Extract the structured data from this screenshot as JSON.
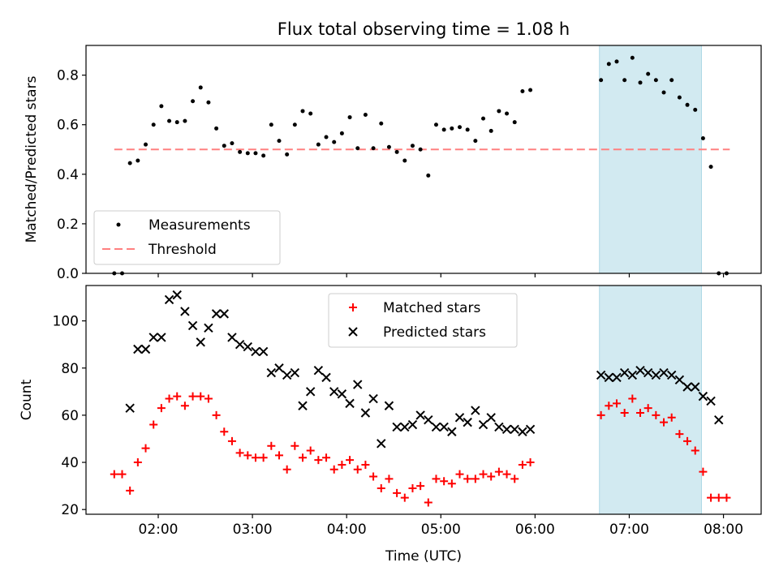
{
  "title": "Flux total observing time = 1.08 h",
  "chart_data": [
    {
      "type": "scatter",
      "ylabel": "Matched/Predicted stars",
      "xlabel": "",
      "ylim": [
        0,
        0.92
      ],
      "y_ticks": [
        0.0,
        0.2,
        0.4,
        0.6,
        0.8
      ],
      "y_tick_labels": [
        "0.0",
        "0.2",
        "0.4",
        "0.6",
        "0.8"
      ],
      "highlight_span": {
        "start": "06:41",
        "end": "07:46",
        "color": "#add8e6"
      },
      "legend": {
        "location": "lower-left",
        "entries": [
          {
            "label": "Measurements",
            "marker": "dot",
            "color": "#000000"
          },
          {
            "label": "Threshold",
            "marker": "dashed-line",
            "color": "#ff8080"
          }
        ]
      },
      "threshold": {
        "name": "Threshold",
        "y": 0.5,
        "x_start": "01:32",
        "x_end": "08:04",
        "color": "#ff8080"
      },
      "series": [
        {
          "name": "Measurements",
          "color": "#000000",
          "points": [
            [
              "01:32",
              0.0
            ],
            [
              "01:37",
              0.0
            ],
            [
              "01:42",
              0.445
            ],
            [
              "01:47",
              0.455
            ],
            [
              "01:52",
              0.52
            ],
            [
              "01:57",
              0.6
            ],
            [
              "02:02",
              0.675
            ],
            [
              "02:07",
              0.615
            ],
            [
              "02:12",
              0.61
            ],
            [
              "02:17",
              0.615
            ],
            [
              "02:22",
              0.695
            ],
            [
              "02:27",
              0.75
            ],
            [
              "02:32",
              0.69
            ],
            [
              "02:37",
              0.585
            ],
            [
              "02:42",
              0.515
            ],
            [
              "02:47",
              0.525
            ],
            [
              "02:52",
              0.49
            ],
            [
              "02:57",
              0.485
            ],
            [
              "03:02",
              0.485
            ],
            [
              "03:07",
              0.475
            ],
            [
              "03:12",
              0.6
            ],
            [
              "03:17",
              0.535
            ],
            [
              "03:22",
              0.48
            ],
            [
              "03:27",
              0.6
            ],
            [
              "03:32",
              0.655
            ],
            [
              "03:37",
              0.645
            ],
            [
              "03:42",
              0.52
            ],
            [
              "03:47",
              0.55
            ],
            [
              "03:52",
              0.53
            ],
            [
              "03:57",
              0.565
            ],
            [
              "04:02",
              0.63
            ],
            [
              "04:07",
              0.505
            ],
            [
              "04:12",
              0.64
            ],
            [
              "04:17",
              0.505
            ],
            [
              "04:22",
              0.605
            ],
            [
              "04:27",
              0.51
            ],
            [
              "04:32",
              0.49
            ],
            [
              "04:37",
              0.455
            ],
            [
              "04:42",
              0.515
            ],
            [
              "04:47",
              0.5
            ],
            [
              "04:52",
              0.395
            ],
            [
              "04:57",
              0.6
            ],
            [
              "05:02",
              0.58
            ],
            [
              "05:07",
              0.585
            ],
            [
              "05:12",
              0.59
            ],
            [
              "05:17",
              0.58
            ],
            [
              "05:22",
              0.535
            ],
            [
              "05:27",
              0.625
            ],
            [
              "05:32",
              0.575
            ],
            [
              "05:37",
              0.655
            ],
            [
              "05:42",
              0.645
            ],
            [
              "05:47",
              0.61
            ],
            [
              "05:52",
              0.735
            ],
            [
              "05:57",
              0.74
            ],
            [
              "06:42",
              0.78
            ],
            [
              "06:47",
              0.845
            ],
            [
              "06:52",
              0.855
            ],
            [
              "06:57",
              0.78
            ],
            [
              "07:02",
              0.87
            ],
            [
              "07:07",
              0.77
            ],
            [
              "07:12",
              0.805
            ],
            [
              "07:17",
              0.78
            ],
            [
              "07:22",
              0.73
            ],
            [
              "07:27",
              0.78
            ],
            [
              "07:32",
              0.71
            ],
            [
              "07:37",
              0.68
            ],
            [
              "07:42",
              0.66
            ],
            [
              "07:47",
              0.545
            ],
            [
              "07:52",
              0.43
            ],
            [
              "07:57",
              0.0
            ],
            [
              "08:02",
              0.0
            ]
          ]
        }
      ]
    },
    {
      "type": "scatter",
      "ylabel": "Count",
      "xlabel": "Time (UTC)",
      "ylim": [
        18,
        115
      ],
      "y_ticks": [
        20,
        40,
        60,
        80,
        100
      ],
      "y_tick_labels": [
        "20",
        "40",
        "60",
        "80",
        "100"
      ],
      "x_ticks": [
        "02:00",
        "03:00",
        "04:00",
        "05:00",
        "06:00",
        "07:00",
        "08:00"
      ],
      "x_range": [
        "01:14",
        "08:24"
      ],
      "highlight_span": {
        "start": "06:41",
        "end": "07:46",
        "color": "#add8e6"
      },
      "legend": {
        "location": "upper-center",
        "entries": [
          {
            "label": "Matched stars",
            "marker": "+",
            "color": "#ff0000"
          },
          {
            "label": "Predicted stars",
            "marker": "x",
            "color": "#000000"
          }
        ]
      },
      "series": [
        {
          "name": "Matched stars",
          "marker": "+",
          "color": "#ff0000",
          "points": [
            [
              "01:32",
              35
            ],
            [
              "01:37",
              35
            ],
            [
              "01:42",
              28
            ],
            [
              "01:47",
              40
            ],
            [
              "01:52",
              46
            ],
            [
              "01:57",
              56
            ],
            [
              "02:02",
              63
            ],
            [
              "02:07",
              67
            ],
            [
              "02:12",
              68
            ],
            [
              "02:17",
              64
            ],
            [
              "02:22",
              68
            ],
            [
              "02:27",
              68
            ],
            [
              "02:32",
              67
            ],
            [
              "02:37",
              60
            ],
            [
              "02:42",
              53
            ],
            [
              "02:47",
              49
            ],
            [
              "02:52",
              44
            ],
            [
              "02:57",
              43
            ],
            [
              "03:02",
              42
            ],
            [
              "03:07",
              42
            ],
            [
              "03:12",
              47
            ],
            [
              "03:17",
              43
            ],
            [
              "03:22",
              37
            ],
            [
              "03:27",
              47
            ],
            [
              "03:32",
              42
            ],
            [
              "03:37",
              45
            ],
            [
              "03:42",
              41
            ],
            [
              "03:47",
              42
            ],
            [
              "03:52",
              37
            ],
            [
              "03:57",
              39
            ],
            [
              "04:02",
              41
            ],
            [
              "04:07",
              37
            ],
            [
              "04:12",
              39
            ],
            [
              "04:17",
              34
            ],
            [
              "04:22",
              29
            ],
            [
              "04:27",
              33
            ],
            [
              "04:32",
              27
            ],
            [
              "04:37",
              25
            ],
            [
              "04:42",
              29
            ],
            [
              "04:47",
              30
            ],
            [
              "04:52",
              23
            ],
            [
              "04:57",
              33
            ],
            [
              "05:02",
              32
            ],
            [
              "05:07",
              31
            ],
            [
              "05:12",
              35
            ],
            [
              "05:17",
              33
            ],
            [
              "05:22",
              33
            ],
            [
              "05:27",
              35
            ],
            [
              "05:32",
              34
            ],
            [
              "05:37",
              36
            ],
            [
              "05:42",
              35
            ],
            [
              "05:47",
              33
            ],
            [
              "05:52",
              39
            ],
            [
              "05:57",
              40
            ],
            [
              "06:42",
              60
            ],
            [
              "06:47",
              64
            ],
            [
              "06:52",
              65
            ],
            [
              "06:57",
              61
            ],
            [
              "07:02",
              67
            ],
            [
              "07:07",
              61
            ],
            [
              "07:12",
              63
            ],
            [
              "07:17",
              60
            ],
            [
              "07:22",
              57
            ],
            [
              "07:27",
              59
            ],
            [
              "07:32",
              52
            ],
            [
              "07:37",
              49
            ],
            [
              "07:42",
              45
            ],
            [
              "07:47",
              36
            ],
            [
              "07:52",
              25
            ],
            [
              "07:57",
              25
            ],
            [
              "08:02",
              25
            ]
          ]
        },
        {
          "name": "Predicted stars",
          "marker": "x",
          "color": "#000000",
          "points": [
            [
              "01:42",
              63
            ],
            [
              "01:47",
              88
            ],
            [
              "01:52",
              88
            ],
            [
              "01:57",
              93
            ],
            [
              "02:02",
              93
            ],
            [
              "02:07",
              109
            ],
            [
              "02:12",
              111
            ],
            [
              "02:17",
              104
            ],
            [
              "02:22",
              98
            ],
            [
              "02:27",
              91
            ],
            [
              "02:32",
              97
            ],
            [
              "02:37",
              103
            ],
            [
              "02:42",
              103
            ],
            [
              "02:47",
              93
            ],
            [
              "02:52",
              90
            ],
            [
              "02:57",
              89
            ],
            [
              "03:02",
              87
            ],
            [
              "03:07",
              87
            ],
            [
              "03:12",
              78
            ],
            [
              "03:17",
              80
            ],
            [
              "03:22",
              77
            ],
            [
              "03:27",
              78
            ],
            [
              "03:32",
              64
            ],
            [
              "03:37",
              70
            ],
            [
              "03:42",
              79
            ],
            [
              "03:47",
              76
            ],
            [
              "03:52",
              70
            ],
            [
              "03:57",
              69
            ],
            [
              "04:02",
              65
            ],
            [
              "04:07",
              73
            ],
            [
              "04:12",
              61
            ],
            [
              "04:17",
              67
            ],
            [
              "04:22",
              48
            ],
            [
              "04:27",
              64
            ],
            [
              "04:32",
              55
            ],
            [
              "04:37",
              55
            ],
            [
              "04:42",
              56
            ],
            [
              "04:47",
              60
            ],
            [
              "04:52",
              58
            ],
            [
              "04:57",
              55
            ],
            [
              "05:02",
              55
            ],
            [
              "05:07",
              53
            ],
            [
              "05:12",
              59
            ],
            [
              "05:17",
              57
            ],
            [
              "05:22",
              62
            ],
            [
              "05:27",
              56
            ],
            [
              "05:32",
              59
            ],
            [
              "05:37",
              55
            ],
            [
              "05:42",
              54
            ],
            [
              "05:47",
              54
            ],
            [
              "05:52",
              53
            ],
            [
              "05:57",
              54
            ],
            [
              "06:42",
              77
            ],
            [
              "06:47",
              76
            ],
            [
              "06:52",
              76
            ],
            [
              "06:57",
              78
            ],
            [
              "07:02",
              77
            ],
            [
              "07:07",
              79
            ],
            [
              "07:12",
              78
            ],
            [
              "07:17",
              77
            ],
            [
              "07:22",
              78
            ],
            [
              "07:27",
              77
            ],
            [
              "07:32",
              75
            ],
            [
              "07:37",
              72
            ],
            [
              "07:42",
              72
            ],
            [
              "07:47",
              68
            ],
            [
              "07:52",
              66
            ],
            [
              "07:57",
              58
            ]
          ]
        }
      ]
    }
  ]
}
